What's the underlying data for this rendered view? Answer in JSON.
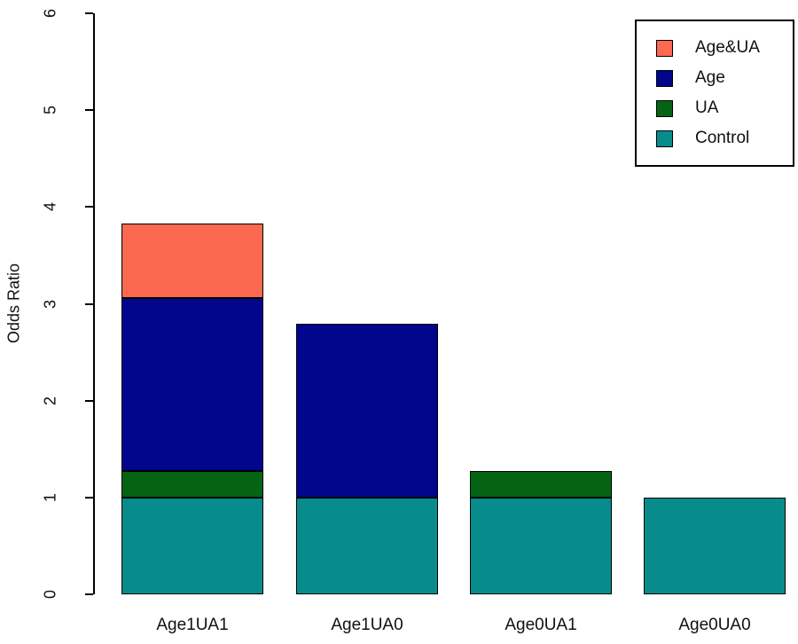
{
  "figure": {
    "background": "#ffffff"
  },
  "chart_data": {
    "type": "bar",
    "stacked": true,
    "title": "",
    "xlabel": "",
    "ylabel": "Odds Ratio",
    "ylim": [
      0,
      6
    ],
    "yticks": [
      0,
      1,
      2,
      3,
      4,
      5,
      6
    ],
    "grid": false,
    "categories": [
      "Age1UA1",
      "Age1UA0",
      "Age0UA1",
      "Age0UA0"
    ],
    "totals": [
      3.83,
      2.79,
      1.27,
      1.0
    ],
    "series": [
      {
        "name": "Control",
        "color": "#078C8B",
        "values": [
          1.0,
          1.0,
          1.0,
          1.0
        ]
      },
      {
        "name": "UA",
        "color": "#046413",
        "values": [
          0.27,
          0,
          0.27,
          0
        ]
      },
      {
        "name": "Age",
        "color": "#01068D",
        "values": [
          1.79,
          1.79,
          0,
          0
        ]
      },
      {
        "name": "Age&UA",
        "color": "#FB6A50",
        "values": [
          0.77,
          0,
          0,
          0
        ]
      }
    ],
    "legend_position": "top-right"
  },
  "legend": {
    "items": [
      {
        "label": "Age&UA",
        "color": "#FB6A50"
      },
      {
        "label": "Age",
        "color": "#01068D"
      },
      {
        "label": "UA",
        "color": "#046413"
      },
      {
        "label": "Control",
        "color": "#078C8B"
      }
    ]
  }
}
